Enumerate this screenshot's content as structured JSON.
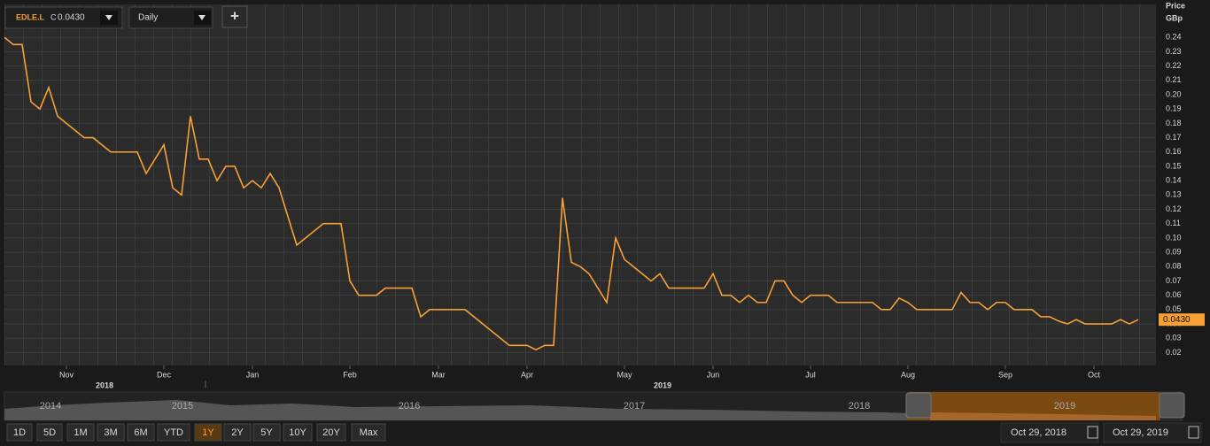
{
  "toolbar": {
    "symbol": "EDLE.L",
    "close_prefix": "C",
    "close": {
      "value": 0.043,
      "label": "0.0430"
    },
    "interval": "Daily",
    "add_button": "+"
  },
  "chart_data": {
    "type": "line",
    "y_axis_label": [
      "Price",
      "GBp"
    ],
    "categories": [
      null,
      null,
      null,
      null,
      null,
      null,
      null,
      "Nov",
      null,
      null,
      null,
      null,
      null,
      null,
      null,
      null,
      null,
      null,
      "Dec",
      null,
      null,
      null,
      null,
      null,
      null,
      null,
      null,
      null,
      "Jan",
      null,
      null,
      null,
      null,
      null,
      null,
      null,
      null,
      null,
      null,
      "Feb",
      null,
      null,
      null,
      null,
      null,
      null,
      null,
      null,
      null,
      "Mar",
      null,
      null,
      null,
      null,
      null,
      null,
      null,
      null,
      null,
      "Apr",
      null,
      null,
      null,
      null,
      null,
      null,
      null,
      null,
      null,
      null,
      "May",
      null,
      null,
      null,
      null,
      null,
      null,
      null,
      null,
      null,
      "Jun",
      null,
      null,
      null,
      null,
      null,
      null,
      null,
      null,
      null,
      null,
      "Jul",
      null,
      null,
      null,
      null,
      null,
      null,
      null,
      null,
      null,
      null,
      "Aug",
      null,
      null,
      null,
      null,
      null,
      null,
      null,
      null,
      null,
      null,
      "Sep",
      null,
      null,
      null,
      null,
      null,
      null,
      null,
      null,
      null,
      "Oct",
      null,
      null,
      null,
      null,
      null
    ],
    "year_labels": [
      "2018",
      "2019"
    ],
    "series": [
      {
        "name": "EDLE.L",
        "color": "#f7a035",
        "values": [
          0.24,
          0.235,
          0.235,
          0.195,
          0.19,
          0.205,
          0.185,
          0.18,
          0.175,
          0.17,
          0.17,
          0.165,
          0.16,
          0.16,
          0.16,
          0.16,
          0.145,
          0.155,
          0.165,
          0.135,
          0.13,
          0.185,
          0.155,
          0.155,
          0.14,
          0.15,
          0.15,
          0.135,
          0.14,
          0.135,
          0.145,
          0.135,
          0.115,
          0.095,
          0.1,
          0.105,
          0.11,
          0.11,
          0.11,
          0.07,
          0.06,
          0.06,
          0.06,
          0.065,
          0.065,
          0.065,
          0.065,
          0.045,
          0.05,
          0.05,
          0.05,
          0.05,
          0.05,
          0.045,
          0.04,
          0.035,
          0.03,
          0.025,
          0.025,
          0.025,
          0.022,
          0.025,
          0.025,
          0.128,
          0.083,
          0.08,
          0.075,
          0.065,
          0.055,
          0.1,
          0.085,
          0.08,
          0.075,
          0.07,
          0.075,
          0.065,
          0.065,
          0.065,
          0.065,
          0.065,
          0.075,
          0.06,
          0.06,
          0.055,
          0.06,
          0.055,
          0.055,
          0.07,
          0.07,
          0.06,
          0.055,
          0.06,
          0.06,
          0.06,
          0.055,
          0.055,
          0.055,
          0.055,
          0.055,
          0.05,
          0.05,
          0.058,
          0.055,
          0.05,
          0.05,
          0.05,
          0.05,
          0.05,
          0.062,
          0.055,
          0.055,
          0.05,
          0.055,
          0.055,
          0.05,
          0.05,
          0.05,
          0.045,
          0.045,
          0.042,
          0.04,
          0.043,
          0.04,
          0.04,
          0.04,
          0.04,
          0.043,
          0.04,
          0.043
        ]
      }
    ],
    "last_price": {
      "value": 0.043,
      "label": "0.0430"
    },
    "ylim": [
      0.011,
      0.263
    ],
    "yticks": [
      0.02,
      0.03,
      0.04,
      0.05,
      0.06,
      0.07,
      0.08,
      0.09,
      {
        "value": 0.1,
        "label": "0.10"
      },
      0.11,
      0.12,
      0.13,
      0.14,
      0.15,
      0.16,
      0.17,
      0.18,
      0.19,
      {
        "value": 0.2,
        "label": "0.20"
      },
      0.21,
      0.22,
      0.23,
      0.24
    ],
    "grid": true
  },
  "navigator": {
    "years": [
      "2014",
      "2015",
      "2016",
      "2017",
      "2018",
      "2019"
    ]
  },
  "range_buttons": [
    {
      "label": "1D",
      "selected": false
    },
    {
      "label": "5D",
      "selected": false
    },
    {
      "label": "1M",
      "selected": false
    },
    {
      "label": "3M",
      "selected": false
    },
    {
      "label": "6M",
      "selected": false
    },
    {
      "label": "YTD",
      "selected": false
    },
    {
      "label": "1Y",
      "selected": true
    },
    {
      "label": "2Y",
      "selected": false
    },
    {
      "label": "5Y",
      "selected": false
    },
    {
      "label": "10Y",
      "selected": false
    },
    {
      "label": "20Y",
      "selected": false
    },
    {
      "label": "Max",
      "selected": false
    }
  ],
  "date_range": {
    "from": "Oct 29, 2018",
    "to": "Oct 29, 2019"
  }
}
